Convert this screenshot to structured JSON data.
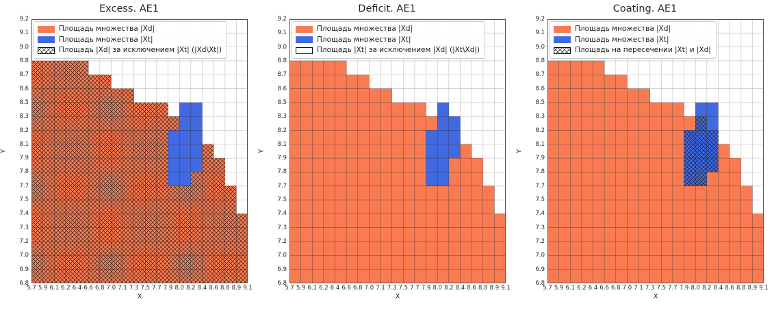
{
  "colors": {
    "orange": "#FA7B52",
    "blue": "#4169E1",
    "grid_line": "#cccccc",
    "cell_edge": "#2b2b2b",
    "hatch": "#111111",
    "frame": "#555555"
  },
  "chart_data": [
    {
      "type": "heatmap",
      "title": "Excess. AE1",
      "xlabel": "X",
      "ylabel": "Y",
      "x_ticks": [
        "5.7",
        "5.9",
        "6.1",
        "6.2",
        "6.4",
        "6.6",
        "6.8",
        "7.0",
        "7.1",
        "7.3",
        "7.5",
        "7.7",
        "7.9",
        "8.0",
        "8.2",
        "8.4",
        "8.6",
        "8.8",
        "8.9",
        "9.1"
      ],
      "y_ticks": [
        "9.2",
        "9.1",
        "9.0",
        "8.8",
        "8.7",
        "8.6",
        "8.5",
        "8.3",
        "8.2",
        "8.1",
        "7.9",
        "7.8",
        "7.7",
        "7.5",
        "7.4",
        "7.3",
        "7.2",
        "7.0",
        "6.9",
        "6.8"
      ],
      "grid": {
        "cols": 19,
        "rows": 19
      },
      "orange_top_row_by_col": [
        3,
        3,
        3,
        3,
        3,
        4,
        4,
        5,
        5,
        6,
        6,
        6,
        7,
        7,
        8,
        9,
        10,
        12,
        14
      ],
      "blue_cells": [
        [
          13,
          6
        ],
        [
          14,
          6
        ],
        [
          13,
          7
        ],
        [
          14,
          7
        ],
        [
          12,
          8
        ],
        [
          13,
          8
        ],
        [
          14,
          8
        ],
        [
          12,
          9
        ],
        [
          13,
          9
        ],
        [
          14,
          9
        ],
        [
          12,
          10
        ],
        [
          13,
          10
        ],
        [
          14,
          10
        ],
        [
          12,
          11
        ],
        [
          13,
          11
        ]
      ],
      "hatch_rule": "orange_minus_blue",
      "legend": [
        {
          "label": "Площадь множества |Xd|",
          "swatch": "orange"
        },
        {
          "label": "Площадь множества  |Xt|",
          "swatch": "blue"
        },
        {
          "label": "Площадь |Xd| за исключением |Xt| (|Xd\\Xt|)",
          "swatch": "hatch"
        }
      ]
    },
    {
      "type": "heatmap",
      "title": "Deficit. AE1",
      "xlabel": "X",
      "ylabel": "Y",
      "x_ticks": [
        "5.7",
        "5.9",
        "6.1",
        "6.2",
        "6.4",
        "6.6",
        "6.8",
        "7.0",
        "7.1",
        "7.3",
        "7.5",
        "7.7",
        "7.9",
        "8.0",
        "8.2",
        "8.4",
        "8.6",
        "8.8",
        "8.9",
        "9.1"
      ],
      "y_ticks": [
        "9.2",
        "9.1",
        "9.0",
        "8.8",
        "8.7",
        "8.6",
        "8.5",
        "8.3",
        "8.2",
        "8.1",
        "7.9",
        "7.8",
        "7.7",
        "7.5",
        "7.4",
        "7.3",
        "7.2",
        "7.0",
        "6.9",
        "6.8"
      ],
      "grid": {
        "cols": 19,
        "rows": 19
      },
      "orange_top_row_by_col": [
        3,
        3,
        3,
        3,
        3,
        4,
        4,
        5,
        5,
        6,
        6,
        6,
        7,
        7,
        8,
        9,
        10,
        12,
        14
      ],
      "blue_cells": [
        [
          13,
          6
        ],
        [
          13,
          7
        ],
        [
          14,
          7
        ],
        [
          12,
          8
        ],
        [
          13,
          8
        ],
        [
          14,
          8
        ],
        [
          12,
          9
        ],
        [
          13,
          9
        ],
        [
          14,
          9
        ],
        [
          12,
          10
        ],
        [
          13,
          10
        ],
        [
          12,
          11
        ],
        [
          13,
          11
        ]
      ],
      "hatch_rule": "none",
      "legend": [
        {
          "label": "Площадь множества |Xd|",
          "swatch": "orange"
        },
        {
          "label": "Площадь множества  |Xt|",
          "swatch": "blue"
        },
        {
          "label": "Площадь |Xt| за исключением |Xd| (|Xt\\Xd|)",
          "swatch": "empty"
        }
      ]
    },
    {
      "type": "heatmap",
      "title": "Coating. AE1",
      "xlabel": "X",
      "ylabel": "Y",
      "x_ticks": [
        "5.7",
        "5.9",
        "6.1",
        "6.2",
        "6.4",
        "6.6",
        "6.8",
        "7.0",
        "7.1",
        "7.3",
        "7.5",
        "7.7",
        "7.9",
        "8.0",
        "8.2",
        "8.4",
        "8.6",
        "8.8",
        "8.9",
        "9.1"
      ],
      "y_ticks": [
        "9.2",
        "9.1",
        "9.0",
        "8.8",
        "8.7",
        "8.6",
        "8.5",
        "8.3",
        "8.2",
        "8.1",
        "7.9",
        "7.8",
        "7.7",
        "7.5",
        "7.4",
        "7.3",
        "7.2",
        "7.0",
        "6.9",
        "6.8"
      ],
      "grid": {
        "cols": 19,
        "rows": 19
      },
      "orange_top_row_by_col": [
        3,
        3,
        3,
        3,
        3,
        4,
        4,
        5,
        5,
        6,
        6,
        6,
        7,
        7,
        8,
        9,
        10,
        12,
        14
      ],
      "blue_cells": [
        [
          13,
          6
        ],
        [
          14,
          6
        ],
        [
          13,
          7
        ],
        [
          14,
          7
        ],
        [
          12,
          8
        ],
        [
          13,
          8
        ],
        [
          14,
          8
        ],
        [
          12,
          9
        ],
        [
          13,
          9
        ],
        [
          14,
          9
        ],
        [
          12,
          10
        ],
        [
          13,
          10
        ],
        [
          14,
          10
        ],
        [
          12,
          11
        ],
        [
          13,
          11
        ]
      ],
      "hatch_rule": "blue_intersect_orange",
      "legend": [
        {
          "label": "Площадь множества |Xd|",
          "swatch": "orange"
        },
        {
          "label": "Площадь множества  |Xt|",
          "swatch": "blue"
        },
        {
          "label": "Площадь на пересечении |Xt| и |Xd|",
          "swatch": "hatch"
        }
      ]
    }
  ]
}
